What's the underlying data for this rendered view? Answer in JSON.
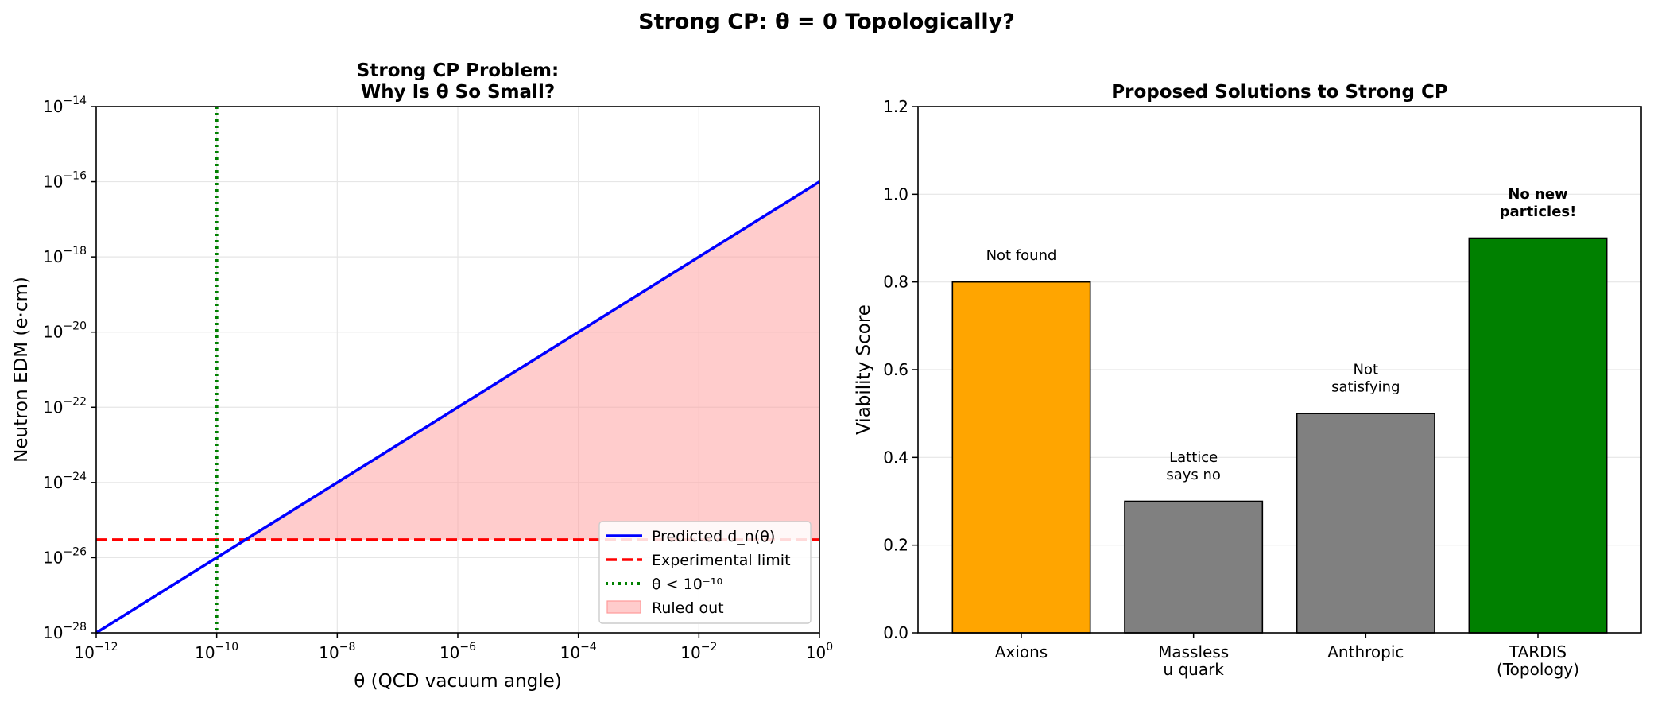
{
  "suptitle": "Strong CP: θ = 0 Topologically?",
  "chart_data": [
    {
      "type": "line",
      "title_line1": "Strong CP Problem:",
      "title_line2": "Why Is θ So Small?",
      "xlabel": "θ (QCD vacuum angle)",
      "ylabel": "Neutron EDM (e·cm)",
      "xscale": "log",
      "yscale": "log",
      "xlim": [
        1e-12,
        1
      ],
      "ylim": [
        1e-28,
        1e-14
      ],
      "x_ticks": [
        {
          "base": "10",
          "exp": "−12",
          "value": 1e-12
        },
        {
          "base": "10",
          "exp": "−10",
          "value": 1e-10
        },
        {
          "base": "10",
          "exp": "−8",
          "value": 1e-08
        },
        {
          "base": "10",
          "exp": "−6",
          "value": 1e-06
        },
        {
          "base": "10",
          "exp": "−4",
          "value": 0.0001
        },
        {
          "base": "10",
          "exp": "−2",
          "value": 0.01
        },
        {
          "base": "10",
          "exp": "0",
          "value": 1
        }
      ],
      "y_ticks": [
        {
          "base": "10",
          "exp": "−28",
          "value": 1e-28
        },
        {
          "base": "10",
          "exp": "−26",
          "value": 1e-26
        },
        {
          "base": "10",
          "exp": "−24",
          "value": 1e-24
        },
        {
          "base": "10",
          "exp": "−22",
          "value": 1e-22
        },
        {
          "base": "10",
          "exp": "−20",
          "value": 1e-20
        },
        {
          "base": "10",
          "exp": "−18",
          "value": 1e-18
        },
        {
          "base": "10",
          "exp": "−16",
          "value": 1e-16
        },
        {
          "base": "10",
          "exp": "−14",
          "value": 1e-14
        }
      ],
      "grid": true,
      "legend_position": "lower right",
      "series": [
        {
          "name": "Predicted d_n(θ)",
          "kind": "line",
          "color": "#0000ff",
          "x": [
            1e-12,
            1
          ],
          "y": [
            1e-28,
            1e-16
          ]
        },
        {
          "name": "Experimental limit",
          "kind": "hline",
          "color": "#ff0000",
          "y": 3e-26
        },
        {
          "name": "θ < 10⁻¹⁰",
          "kind": "vline",
          "color": "#008000",
          "x": 1e-10
        },
        {
          "name": "Ruled out",
          "kind": "fill",
          "color": "#ff9999",
          "x_from": 3e-10,
          "x_to": 1,
          "y_lower": 3e-26
        }
      ]
    },
    {
      "type": "bar",
      "title": "Proposed Solutions to Strong CP",
      "xlabel": "",
      "ylabel": "Viability Score",
      "ylim": [
        0,
        1.2
      ],
      "y_ticks": [
        "0.0",
        "0.2",
        "0.4",
        "0.6",
        "0.8",
        "1.0",
        "1.2"
      ],
      "grid": true,
      "categories": [
        {
          "line1": "Axions",
          "line2": ""
        },
        {
          "line1": "Massless",
          "line2": "u quark"
        },
        {
          "line1": "Anthropic",
          "line2": ""
        },
        {
          "line1": "TARDIS",
          "line2": "(Topology)"
        }
      ],
      "values": [
        0.8,
        0.3,
        0.5,
        0.9
      ],
      "colors": [
        "#ffa500",
        "#808080",
        "#808080",
        "#008000"
      ],
      "annotations": [
        {
          "line1": "Not found",
          "line2": "",
          "bold": false
        },
        {
          "line1": "Lattice",
          "line2": "says no",
          "bold": false
        },
        {
          "line1": "Not",
          "line2": "satisfying",
          "bold": false
        },
        {
          "line1": "No new",
          "line2": "particles!",
          "bold": true
        }
      ]
    }
  ]
}
